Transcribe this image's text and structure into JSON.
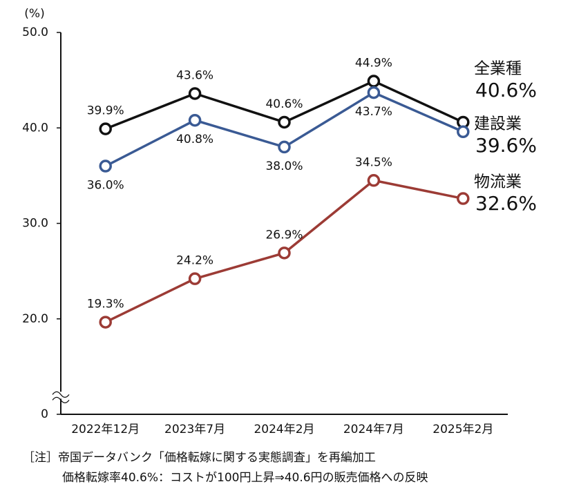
{
  "chart_data": {
    "type": "line",
    "ylabel": "(%)",
    "categories": [
      "2022年12月",
      "2023年7月",
      "2024年2月",
      "2024年7月",
      "2025年2月"
    ],
    "series": [
      {
        "name": "全業種",
        "color": "#111111",
        "values": [
          39.9,
          43.6,
          40.6,
          44.9,
          40.6
        ],
        "value_labels": [
          "39.9%",
          "43.6%",
          "40.6%",
          "44.9%",
          "40.6%"
        ]
      },
      {
        "name": "建設業",
        "color": "#3a5a94",
        "values": [
          36.0,
          40.8,
          38.0,
          43.7,
          39.6
        ],
        "value_labels": [
          "36.0%",
          "40.8%",
          "38.0%",
          "43.7%",
          "39.6%"
        ]
      },
      {
        "name": "物流業",
        "color": "#9c3b35",
        "values": [
          19.3,
          24.2,
          26.9,
          34.5,
          32.6
        ],
        "value_labels": [
          "19.3%",
          "24.2%",
          "26.9%",
          "34.5%",
          "32.6%"
        ]
      }
    ],
    "ylim": [
      0,
      50
    ],
    "yticks": [
      0,
      {
        "value": 20,
        "label": "20.0"
      },
      {
        "value": 30,
        "label": "30.0"
      },
      {
        "value": 40,
        "label": "40.0"
      },
      {
        "value": 50,
        "label": "50.0"
      }
    ],
    "axis_break": true,
    "notes": [
      "［注］帝国データバンク「価格転嫁に関する実態調査」を再編加工",
      "価格転嫁率40.6%：コストが100円上昇⇒40.6円の販売価格への反映"
    ]
  }
}
